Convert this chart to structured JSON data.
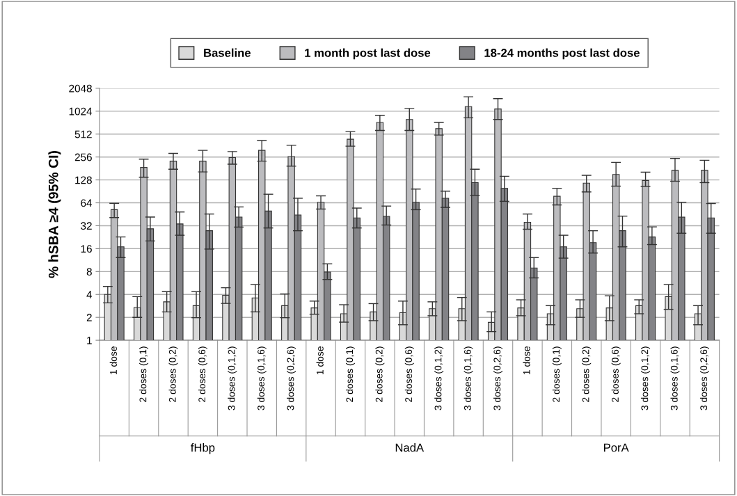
{
  "chart_data": {
    "type": "bar",
    "ylabel": "% hSBA ≥4 (95% CI)",
    "log": "y",
    "ylim": [
      1,
      2048
    ],
    "yticks": [
      1,
      2,
      4,
      8,
      16,
      32,
      64,
      128,
      256,
      512,
      1024,
      2048
    ],
    "grid": "y",
    "legend": "top",
    "categories": [
      "1 dose",
      "2 doses (0,1)",
      "2 doses (0,2)",
      "2 doses (0,6)",
      "3 doses (0,1,2)",
      "3 doses (0,1,6)",
      "3 doses (0,2,6)",
      "1 dose",
      "2 doses (0,1)",
      "2 doses (0,2)",
      "2 doses (0,6)",
      "3 doses (0,1,2)",
      "3 doses (0,1,6)",
      "3 doses (0,2,6)",
      "1 dose",
      "2 doses (0,1)",
      "2 doses (0,2)",
      "2 doses (0,6)",
      "3 doses (0,1,2)",
      "3 doses (0,1,6)",
      "3 doses (0,2,6)"
    ],
    "annotations": [
      "fHbp",
      "NadA",
      "PorA"
    ],
    "series": [
      {
        "name": "Baseline",
        "color": "#d9d9d9",
        "values": [
          4.0,
          2.7,
          3.2,
          2.85,
          3.9,
          3.6,
          2.85,
          2.66,
          2.23,
          2.36,
          2.3,
          2.6,
          2.6,
          1.72,
          2.66,
          2.23,
          2.6,
          2.66,
          2.85,
          3.75,
          2.23
        ],
        "errors": [
          [
            3.1,
            5.1
          ],
          [
            2.0,
            3.75
          ],
          [
            2.36,
            4.35
          ],
          [
            1.98,
            4.35
          ],
          [
            3.05,
            4.9
          ],
          [
            2.36,
            5.4
          ],
          [
            1.98,
            4.06
          ],
          [
            2.2,
            3.27
          ],
          [
            1.73,
            2.93
          ],
          [
            1.81,
            3.03
          ],
          [
            1.6,
            3.27
          ],
          [
            2.1,
            3.2
          ],
          [
            1.81,
            3.65
          ],
          [
            1.3,
            2.36
          ],
          [
            2.1,
            3.4
          ],
          [
            1.6,
            2.85
          ],
          [
            2.0,
            3.4
          ],
          [
            1.81,
            3.84
          ],
          [
            2.23,
            3.4
          ],
          [
            2.55,
            5.4
          ],
          [
            1.6,
            2.85
          ]
        ]
      },
      {
        "name": "1 month post last dose",
        "color": "#bcbcbf",
        "values": [
          52,
          187,
          226,
          226,
          252,
          313,
          260,
          65,
          439,
          729,
          798,
          605,
          1176,
          1097,
          35.5,
          78,
          116,
          151,
          126,
          171,
          171
        ],
        "errors": [
          [
            41,
            63
          ],
          [
            139,
            240
          ],
          [
            177,
            286
          ],
          [
            163,
            313
          ],
          [
            206,
            302
          ],
          [
            226,
            422
          ],
          [
            194,
            365
          ],
          [
            53,
            79
          ],
          [
            355,
            553
          ],
          [
            572,
            904
          ],
          [
            572,
            1113
          ],
          [
            498,
            729
          ],
          [
            838,
            1585
          ],
          [
            798,
            1500
          ],
          [
            28.8,
            45.6
          ],
          [
            60,
            99
          ],
          [
            89,
            147
          ],
          [
            106,
            218
          ],
          [
            105,
            162
          ],
          [
            123,
            245
          ],
          [
            118,
            232
          ]
        ]
      },
      {
        "name": "18-24 months post last dose",
        "color": "#838387",
        "values": [
          16.9,
          29.2,
          33.8,
          27.5,
          41.6,
          49.9,
          44.3,
          7.9,
          40.5,
          42.5,
          65,
          73.5,
          118,
          99,
          8.9,
          16.9,
          19.2,
          27.5,
          22.8,
          41.5,
          40.5
        ],
        "errors": [
          [
            12.2,
            22.8
          ],
          [
            20.2,
            41.6
          ],
          [
            24,
            48.5
          ],
          [
            15.8,
            45.6
          ],
          [
            30.7,
            56.5
          ],
          [
            29.9,
            83
          ],
          [
            27.5,
            73.5
          ],
          [
            6.3,
            10.1
          ],
          [
            29.9,
            54.6
          ],
          [
            32.7,
            58
          ],
          [
            52,
            97
          ],
          [
            55.7,
            91
          ],
          [
            80,
            177
          ],
          [
            67,
            143
          ],
          [
            6.6,
            12.2
          ],
          [
            12,
            24
          ],
          [
            14,
            27.5
          ],
          [
            16.9,
            42.8
          ],
          [
            18.1,
            30.9
          ],
          [
            25.5,
            65
          ],
          [
            25.5,
            62.7
          ]
        ]
      }
    ]
  }
}
